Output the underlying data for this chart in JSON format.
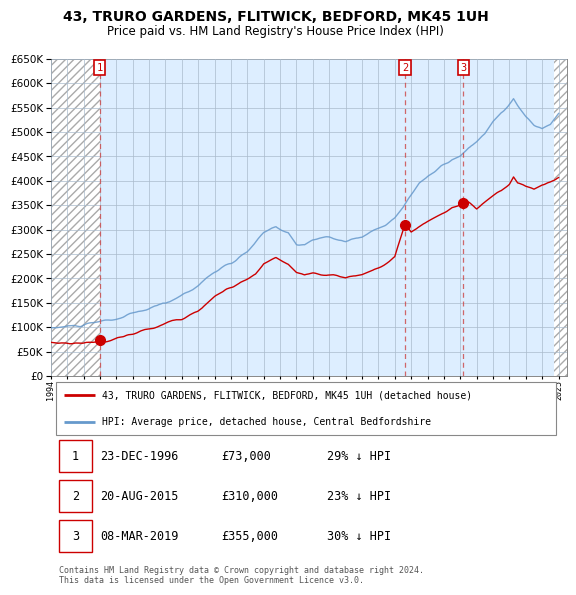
{
  "title1": "43, TRURO GARDENS, FLITWICK, BEDFORD, MK45 1UH",
  "title2": "Price paid vs. HM Land Registry's House Price Index (HPI)",
  "background_color": "#ffffff",
  "plot_bg_color": "#ddeeff",
  "grid_color": "#aabbcc",
  "sale_dates_num": [
    1996.98,
    2015.63,
    2019.19
  ],
  "sale_prices": [
    73000,
    310000,
    355000
  ],
  "sale_labels": [
    "1",
    "2",
    "3"
  ],
  "legend_line1": "43, TRURO GARDENS, FLITWICK, BEDFORD, MK45 1UH (detached house)",
  "legend_line2": "HPI: Average price, detached house, Central Bedfordshire",
  "table_rows": [
    [
      "1",
      "23-DEC-1996",
      "£73,000",
      "29% ↓ HPI"
    ],
    [
      "2",
      "20-AUG-2015",
      "£310,000",
      "23% ↓ HPI"
    ],
    [
      "3",
      "08-MAR-2019",
      "£355,000",
      "30% ↓ HPI"
    ]
  ],
  "footnote1": "Contains HM Land Registry data © Crown copyright and database right 2024.",
  "footnote2": "This data is licensed under the Open Government Licence v3.0.",
  "red_color": "#cc0000",
  "blue_color": "#6699cc",
  "ylim": [
    0,
    650000
  ],
  "xlim_start": 1994.0,
  "xlim_end": 2025.5,
  "hatch_right_start": 2024.75
}
